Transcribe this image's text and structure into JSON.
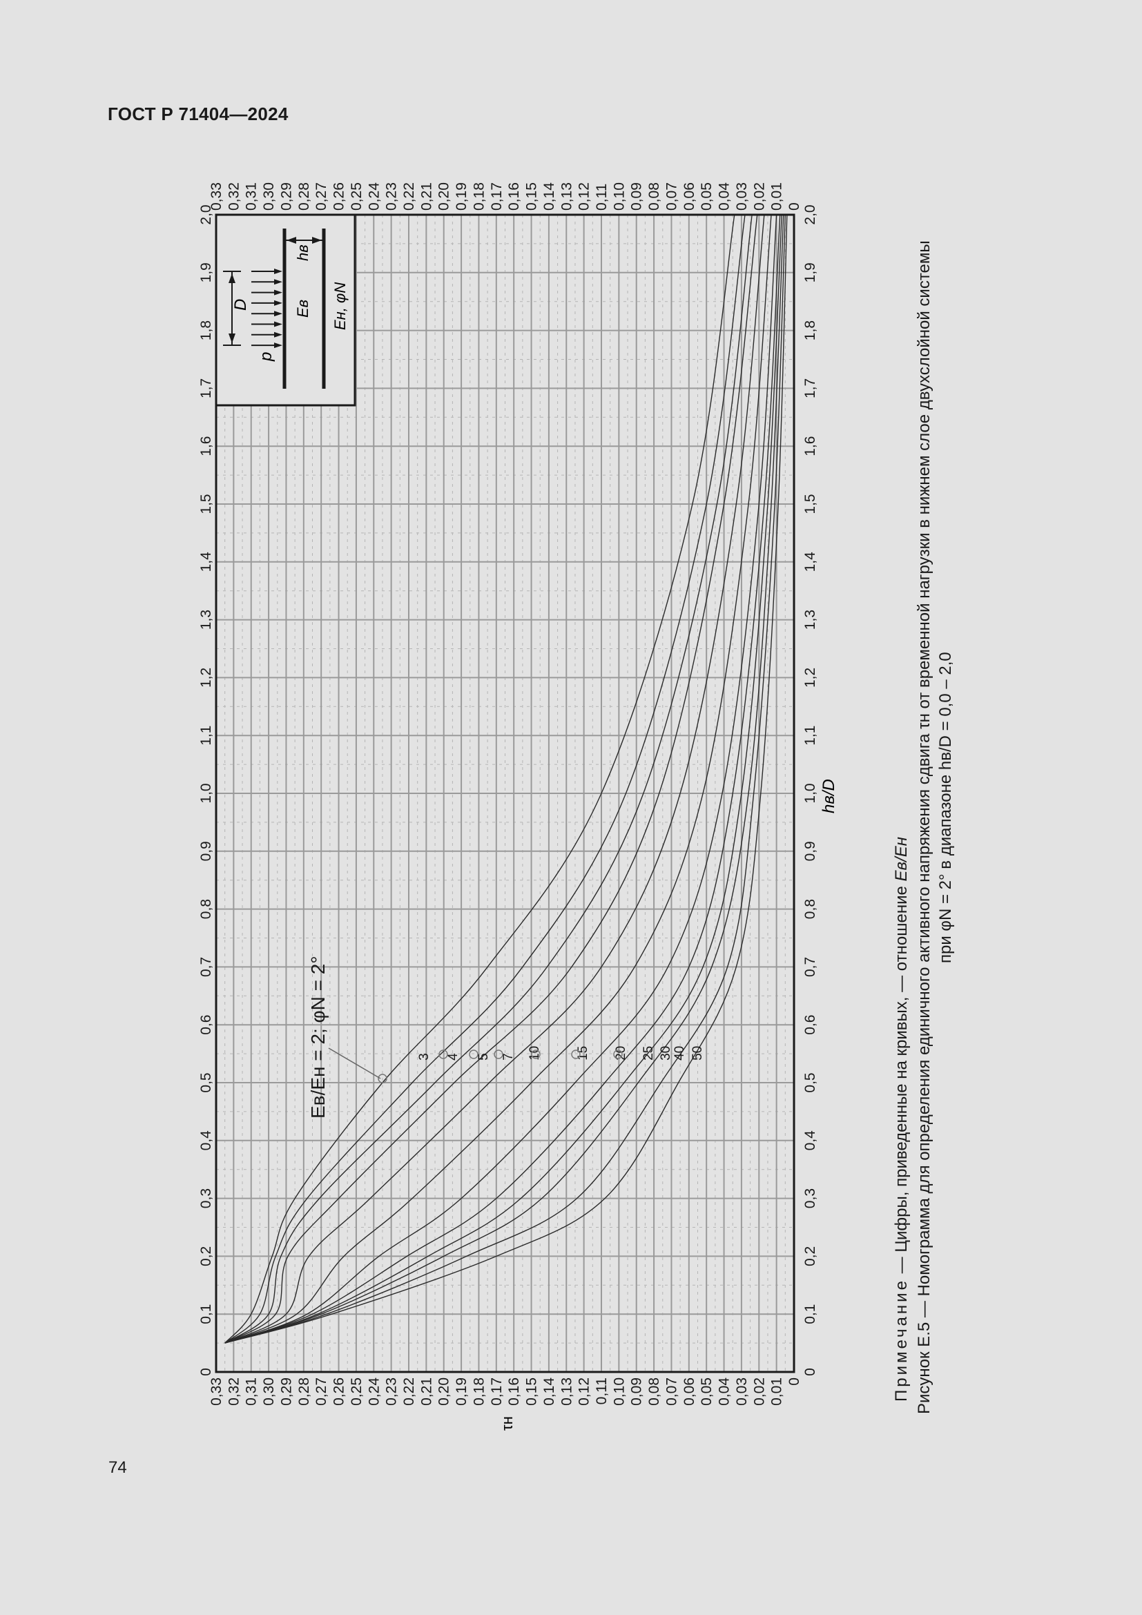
{
  "header": {
    "doc_id": "ГОСТ Р 71404—2024"
  },
  "page": {
    "number": "74"
  },
  "figure": {
    "note_label": "Примечание",
    "note_text": " — Цифры, приведенные на кривых, — отношение ",
    "note_ratio": "Eв/Eн",
    "caption_line1": "Рисунок Е.5 — Номограмма для определения единичного активного напряжения сдвига τн от временной нагрузки в нижнем слое двухслойной системы",
    "caption_line2": "при φN = 2° в диапазоне hв/D = 0,0 – 2,0",
    "annotation": "Eв/Eн = 2; φN = 2°",
    "inset": {
      "p": "p",
      "D": "D",
      "h": "hв",
      "Eu": "Eв",
      "El": "Eн, φN"
    }
  },
  "colors": {
    "background": "#e3e3e3",
    "grid_major": "#9a9a9a",
    "grid_minor": "#b5b5b5",
    "curve": "#2a2a2a",
    "axis": "#1a1a1a"
  },
  "chart_data": {
    "type": "line",
    "title": "Номограмма для определения единичного активного напряжения сдвига τн",
    "xlabel": "hв/D",
    "ylabel": "τн",
    "xlim": [
      0,
      2.0
    ],
    "ylim": [
      0,
      0.33
    ],
    "grid": true,
    "orientation": "rotated 90° counter-clockwise on page",
    "x_ticks": [
      "0",
      "0,1",
      "0,2",
      "0,3",
      "0,4",
      "0,5",
      "0,6",
      "0,7",
      "0,8",
      "0,9",
      "1,0",
      "1,1",
      "1,2",
      "1,3",
      "1,4",
      "1,5",
      "1,6",
      "1,7",
      "1,8",
      "1,9",
      "2,0"
    ],
    "y_ticks": [
      "0",
      "0,01",
      "0,02",
      "0,03",
      "0,04",
      "0,05",
      "0,06",
      "0,07",
      "0,08",
      "0,09",
      "0,10",
      "0,11",
      "0,12",
      "0,13",
      "0,14",
      "0,15",
      "0,16",
      "0,17",
      "0,18",
      "0,19",
      "0,20",
      "0,21",
      "0,22",
      "0,23",
      "0,24",
      "0,25",
      "0,26",
      "0,27",
      "0,28",
      "0,29",
      "0,30",
      "0,31",
      "0,32",
      "0,33"
    ],
    "x": [
      0.05,
      0.1,
      0.2,
      0.3,
      0.5,
      0.7,
      1.0,
      1.5,
      2.0
    ],
    "series": [
      {
        "name": "2",
        "values": [
          0.325,
          0.31,
          0.298,
          0.285,
          0.235,
          0.175,
          0.11,
          0.058,
          0.034
        ]
      },
      {
        "name": "3",
        "values": [
          0.325,
          0.305,
          0.296,
          0.278,
          0.218,
          0.155,
          0.096,
          0.05,
          0.028
        ]
      },
      {
        "name": "4",
        "values": [
          0.325,
          0.3,
          0.293,
          0.271,
          0.205,
          0.141,
          0.086,
          0.044,
          0.024
        ]
      },
      {
        "name": "5",
        "values": [
          0.325,
          0.296,
          0.289,
          0.26,
          0.194,
          0.127,
          0.077,
          0.04,
          0.021
        ]
      },
      {
        "name": "7",
        "values": [
          0.325,
          0.29,
          0.277,
          0.242,
          0.174,
          0.11,
          0.065,
          0.033,
          0.017
        ]
      },
      {
        "name": "10",
        "values": [
          0.325,
          0.284,
          0.257,
          0.218,
          0.15,
          0.091,
          0.052,
          0.026,
          0.013
        ]
      },
      {
        "name": "15",
        "values": [
          0.325,
          0.278,
          0.237,
          0.19,
          0.125,
          0.072,
          0.041,
          0.02,
          0.01
        ]
      },
      {
        "name": "20",
        "values": [
          0.325,
          0.275,
          0.221,
          0.17,
          0.108,
          0.06,
          0.035,
          0.017,
          0.008
        ]
      },
      {
        "name": "25",
        "values": [
          0.325,
          0.272,
          0.209,
          0.156,
          0.097,
          0.052,
          0.03,
          0.015,
          0.007
        ]
      },
      {
        "name": "30",
        "values": [
          0.325,
          0.27,
          0.2,
          0.144,
          0.089,
          0.047,
          0.026,
          0.013,
          0.006
        ]
      },
      {
        "name": "40",
        "values": [
          0.325,
          0.267,
          0.187,
          0.124,
          0.076,
          0.038,
          0.023,
          0.011,
          0.005
        ]
      },
      {
        "name": "50",
        "values": [
          0.325,
          0.264,
          0.17,
          0.108,
          0.066,
          0.033,
          0.019,
          0.009,
          0.004
        ]
      }
    ],
    "curve_label_positions": {
      "hD": 0.55
    },
    "annotations": [
      "Eв/Eн = 2; φN = 2°",
      "Цифры на кривых — отношение Eв/Eн"
    ]
  }
}
